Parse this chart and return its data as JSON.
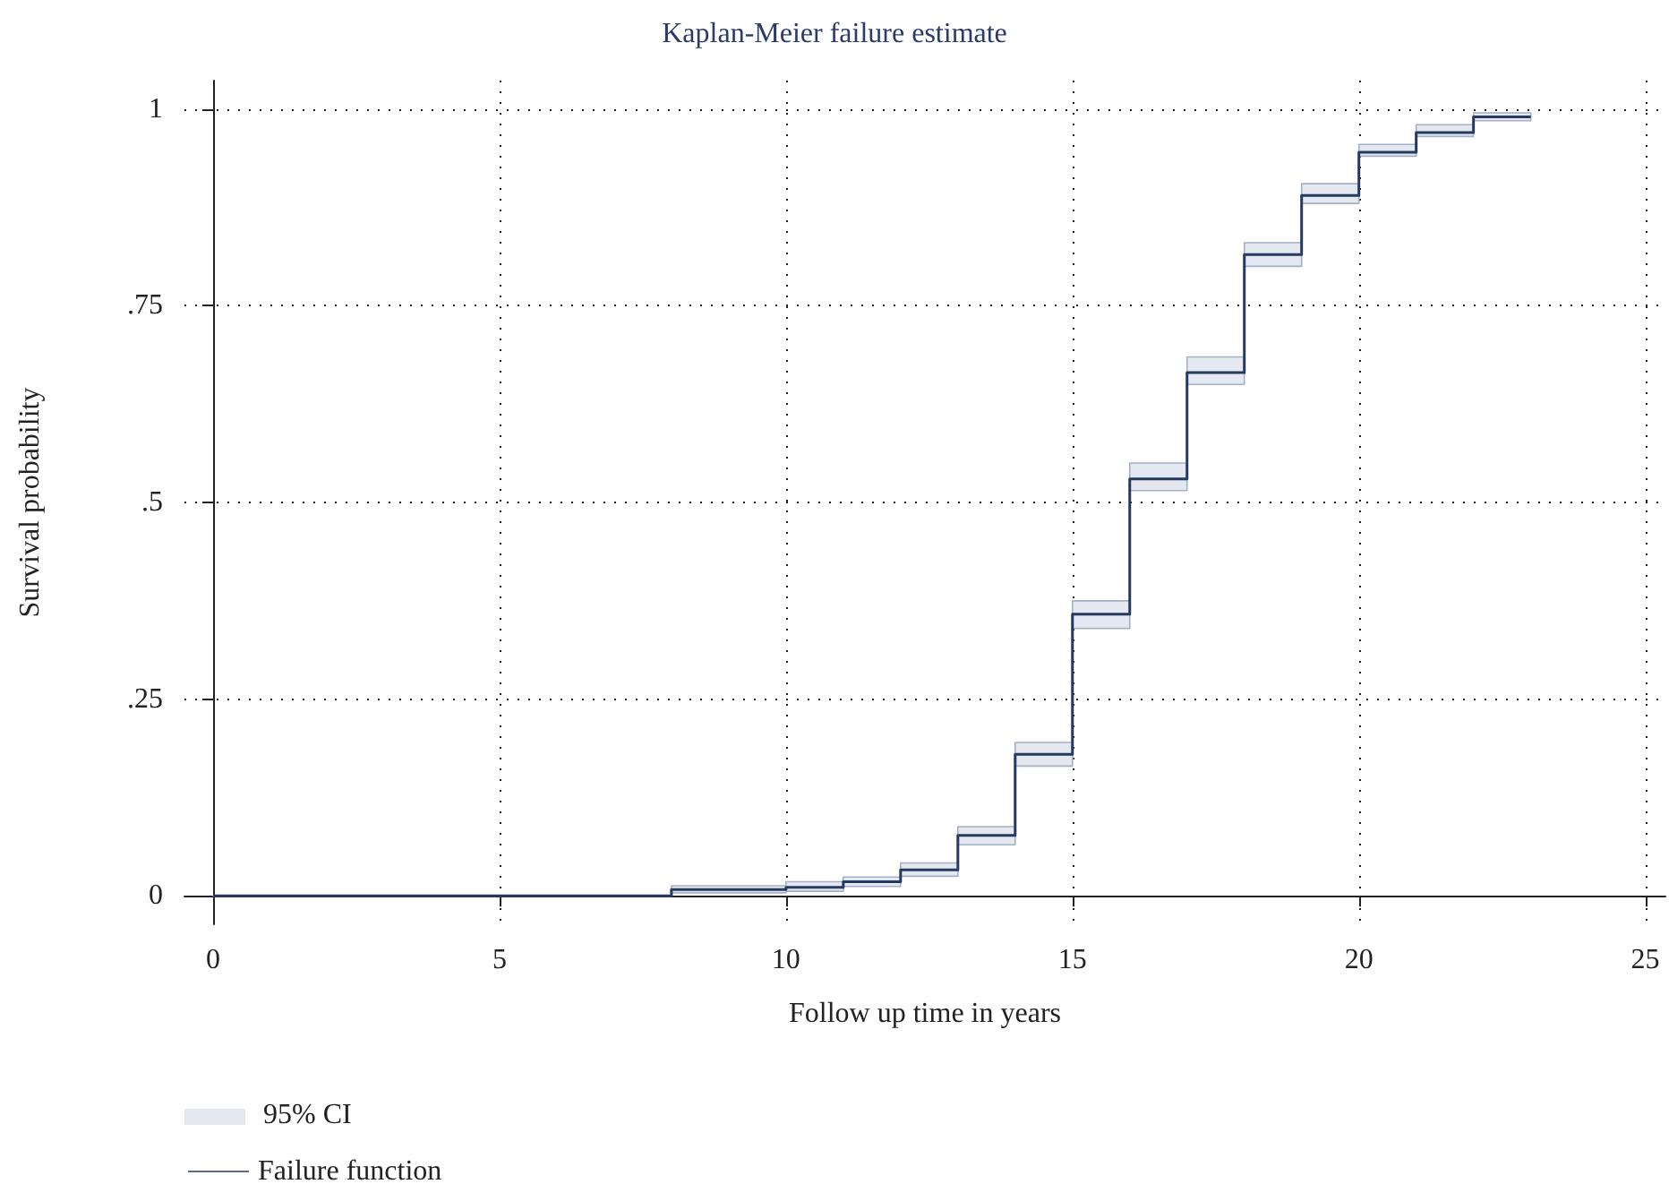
{
  "chart_data": {
    "type": "step",
    "title": "Kaplan-Meier failure estimate",
    "xlabel": "Follow up time in years",
    "ylabel": "Survival probability",
    "x": [
      0,
      8,
      10,
      11,
      12,
      13,
      14,
      15,
      16,
      17,
      18,
      19,
      20,
      21,
      22,
      23
    ],
    "series": [
      {
        "name": "Failure function",
        "color": "#253a5e",
        "values": [
          0,
          0.008,
          0.011,
          0.018,
          0.033,
          0.077,
          0.18,
          0.358,
          0.53,
          0.665,
          0.815,
          0.89,
          0.945,
          0.97,
          0.99,
          0.99
        ],
        "lower": [
          0,
          0.004,
          0.006,
          0.012,
          0.025,
          0.065,
          0.165,
          0.34,
          0.515,
          0.65,
          0.8,
          0.88,
          0.94,
          0.965,
          0.985,
          0.985
        ],
        "upper": [
          0,
          0.013,
          0.018,
          0.024,
          0.042,
          0.088,
          0.195,
          0.375,
          0.55,
          0.685,
          0.83,
          0.905,
          0.955,
          0.98,
          0.995,
          0.995
        ]
      }
    ],
    "annotations": [
      "95% CI"
    ],
    "xlim": [
      -0.5,
      25.35
    ],
    "ylim": [
      -0.036,
      1.036
    ],
    "xticks": [
      0,
      5,
      10,
      15,
      20,
      25
    ],
    "yticks": [
      0,
      {
        "value": 0.25,
        "label": ".25"
      },
      {
        "value": 0.5,
        "label": ".5"
      },
      {
        "value": 0.75,
        "label": ".75"
      },
      1
    ],
    "grid": true,
    "legend": "bottom left",
    "marker": "none",
    "line_style": "solid"
  }
}
